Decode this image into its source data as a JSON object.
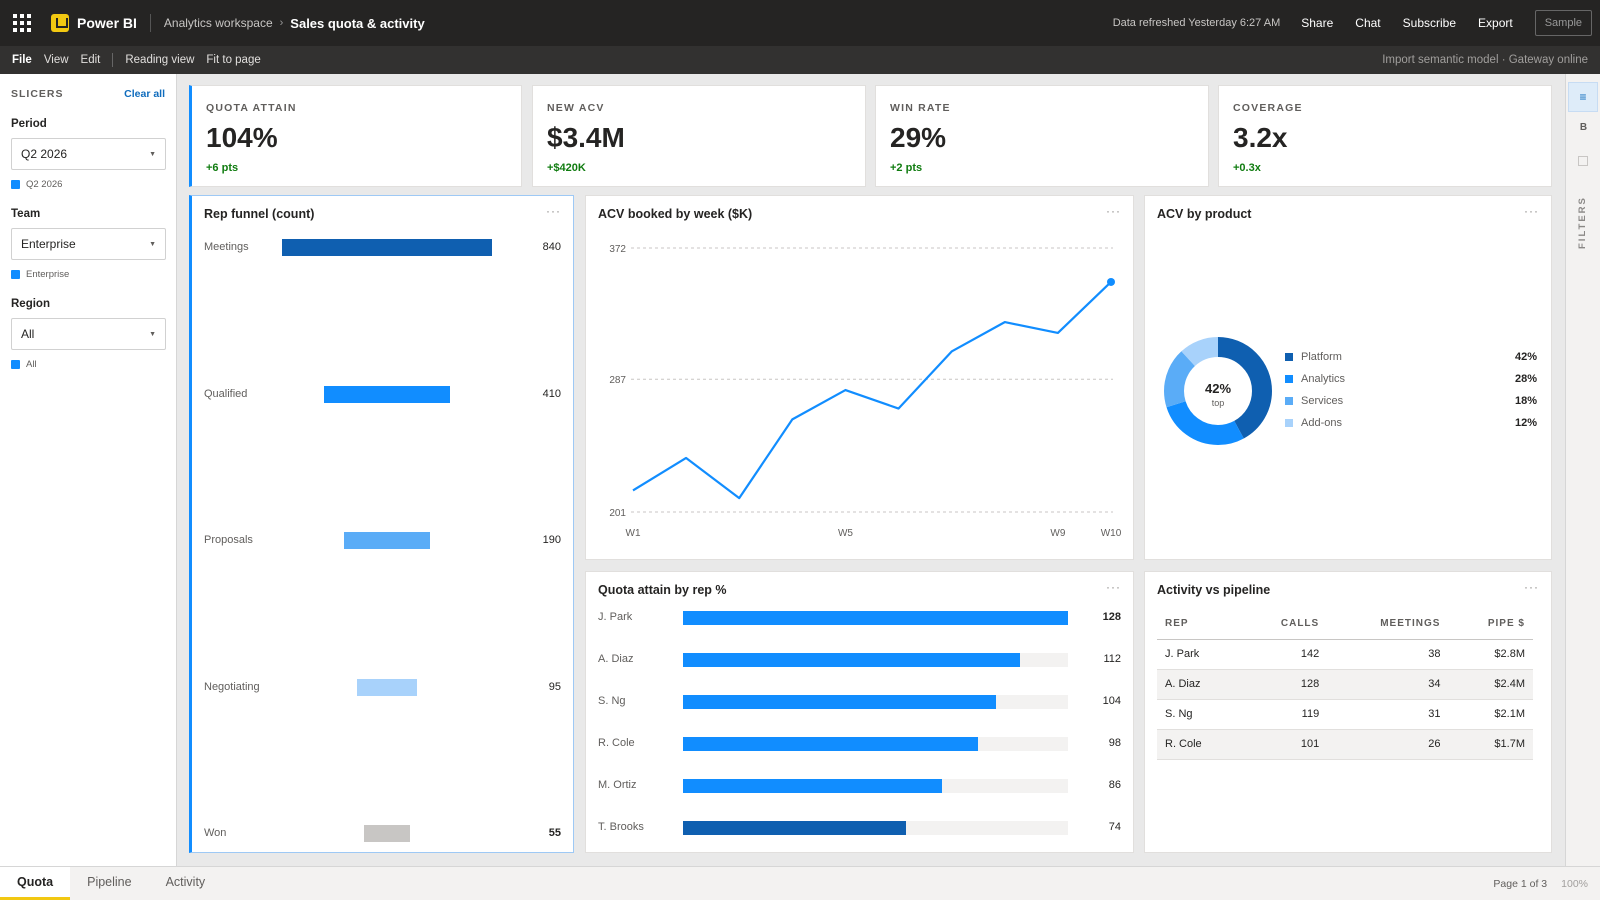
{
  "topbar": {
    "app_name": "Power BI",
    "workspace": "Analytics workspace",
    "report": "Sales quota & activity",
    "refresh": "Data refreshed Yesterday 6:27 AM",
    "actions": [
      "Share",
      "Chat",
      "Subscribe",
      "Export"
    ],
    "sample": "Sample"
  },
  "ribbon": {
    "items": [
      "File",
      "View",
      "Edit"
    ],
    "items2": [
      "Reading view",
      "Fit to page"
    ],
    "status": "Import semantic model · Gateway online"
  },
  "slicers": {
    "title": "SLICERS",
    "clear": "Clear all",
    "groups": [
      {
        "label": "Period",
        "value": "Q2 2026",
        "chip": "Q2 2026"
      },
      {
        "label": "Team",
        "value": "Enterprise",
        "chip": "Enterprise"
      },
      {
        "label": "Region",
        "value": "All",
        "chip": "All"
      }
    ]
  },
  "rail": {
    "b": "B",
    "filters": "FILTERS"
  },
  "kpis": [
    {
      "label": "QUOTA ATTAIN",
      "value": "104%",
      "delta": "+6 pts"
    },
    {
      "label": "NEW ACV",
      "value": "$3.4M",
      "delta": "+$420K"
    },
    {
      "label": "WIN RATE",
      "value": "29%",
      "delta": "+2 pts"
    },
    {
      "label": "COVERAGE",
      "value": "3.2x",
      "delta": "+0.3x"
    }
  ],
  "funnel": {
    "title": "Rep funnel (count)",
    "colors": [
      "#0f5fb0",
      "#118dff",
      "#5aacf7",
      "#a8d2fb",
      "#c8c6c4"
    ]
  },
  "line_chart": {
    "title": "ACV booked by week ($K)",
    "color": "#118dff"
  },
  "donut": {
    "title": "ACV by product",
    "center_value": "42%",
    "center_label": "top",
    "colors": [
      "#0f5fb0",
      "#118dff",
      "#5aacf7",
      "#a8d2fb"
    ]
  },
  "rep_chart": {
    "title": "Quota attain by rep %",
    "max": 128
  },
  "table": {
    "title": "Activity vs pipeline",
    "columns": [
      "REP",
      "CALLS",
      "MEETINGS",
      "PIPE $"
    ],
    "rows": [
      [
        "J. Park",
        "142",
        "38",
        "$2.8M"
      ],
      [
        "A. Diaz",
        "128",
        "34",
        "$2.4M"
      ],
      [
        "S. Ng",
        "119",
        "31",
        "$2.1M"
      ],
      [
        "R. Cole",
        "101",
        "26",
        "$1.7M"
      ]
    ]
  },
  "pages": {
    "tabs": [
      "Quota",
      "Pipeline",
      "Activity"
    ],
    "active": 0,
    "info": "Page 1 of 3",
    "zoom": "100%"
  },
  "chart_data": [
    {
      "type": "bar",
      "orientation": "horizontal",
      "title": "Rep funnel (count)",
      "categories": [
        "Meetings",
        "Qualified",
        "Proposals",
        "Negotiating",
        "Won"
      ],
      "values": [
        840,
        410,
        190,
        95,
        55
      ]
    },
    {
      "type": "line",
      "title": "ACV booked by week ($K)",
      "x": [
        "W1",
        "W2",
        "W3",
        "W4",
        "W5",
        "W6",
        "W7",
        "W8",
        "W9",
        "W10"
      ],
      "x_tick_labels": [
        "W1",
        "W5",
        "W9",
        "W10"
      ],
      "values": [
        215,
        236,
        210,
        261,
        280,
        268,
        305,
        324,
        317,
        350
      ],
      "y_ticks": [
        "201",
        "287",
        "372"
      ],
      "ylim": [
        201,
        372
      ],
      "grid": true
    },
    {
      "type": "pie",
      "style": "donut",
      "title": "ACV by product",
      "categories": [
        "Platform",
        "Analytics",
        "Services",
        "Add-ons"
      ],
      "values": [
        42,
        28,
        18,
        12
      ],
      "legend": "right"
    },
    {
      "type": "bar",
      "orientation": "horizontal",
      "title": "Quota attain by rep %",
      "categories": [
        "J. Park",
        "A. Diaz",
        "S. Ng",
        "R. Cole",
        "M. Ortiz",
        "T. Brooks"
      ],
      "values": [
        128,
        112,
        104,
        98,
        86,
        74
      ]
    }
  ]
}
